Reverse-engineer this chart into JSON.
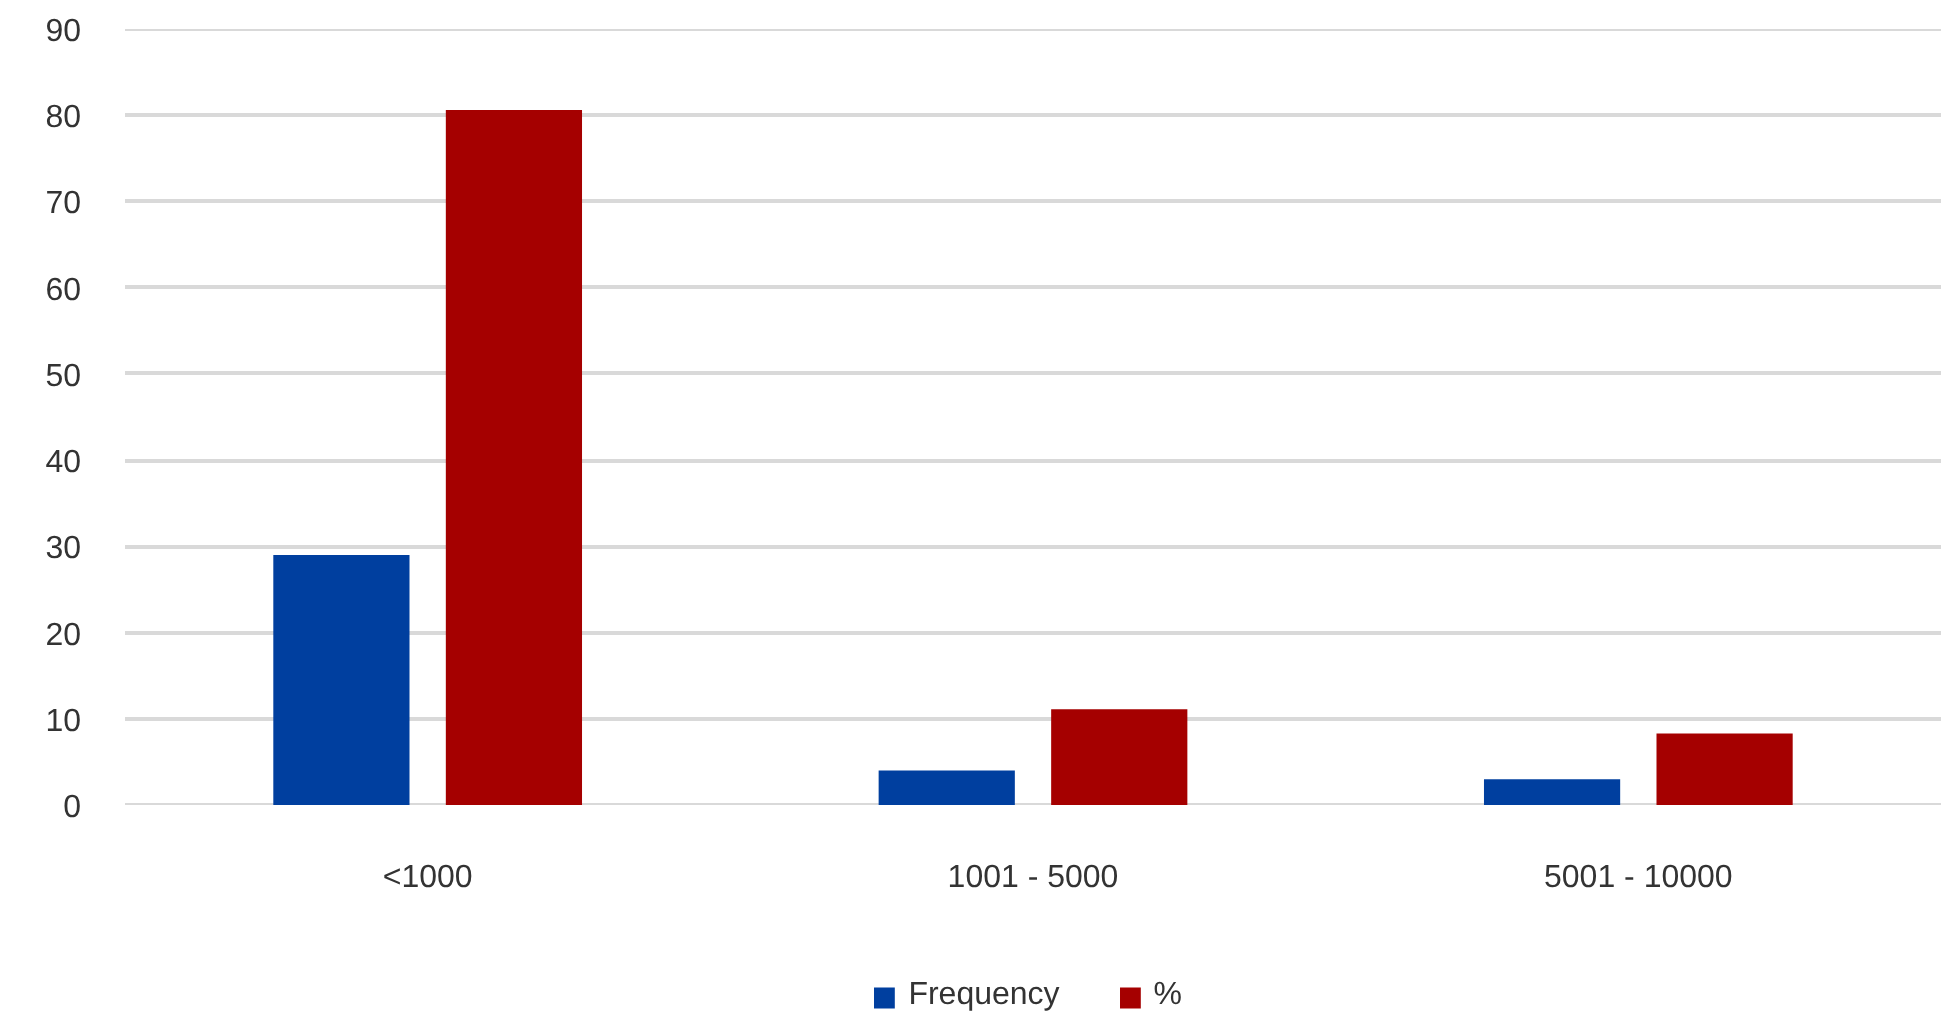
{
  "chart_data": {
    "type": "bar",
    "categories": [
      "<1000",
      "1001 - 5000",
      "5001 - 10000"
    ],
    "series": [
      {
        "name": "Frequency",
        "color": "#003f9f",
        "values": [
          29,
          4,
          3
        ]
      },
      {
        "name": "%",
        "color": "#a50000",
        "values": [
          80.6,
          11.1,
          8.3
        ]
      }
    ],
    "ylim": [
      0,
      90
    ],
    "yticks": [
      0,
      10,
      20,
      30,
      40,
      50,
      60,
      70,
      80,
      90
    ],
    "grid": "y",
    "legend": "bottom"
  }
}
